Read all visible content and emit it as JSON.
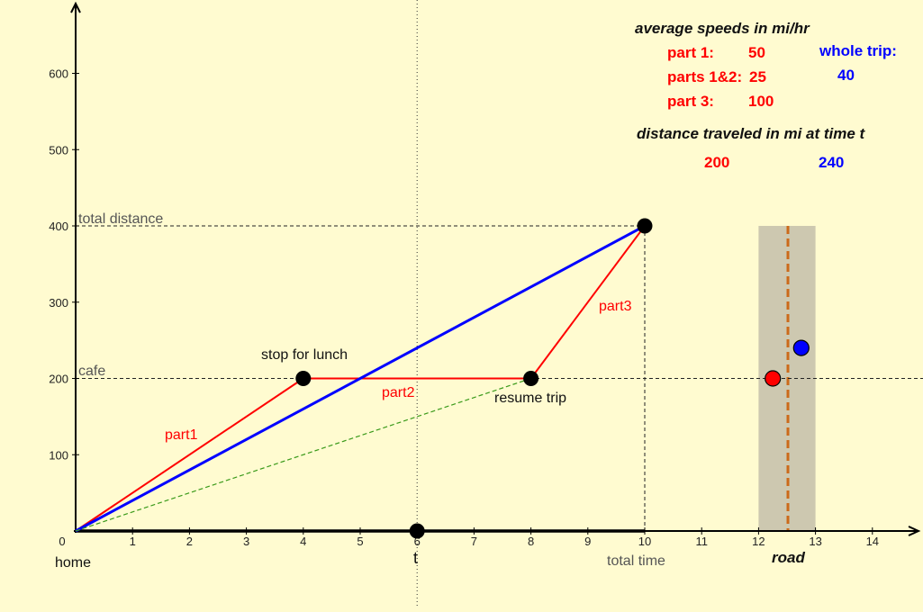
{
  "colors": {
    "background": "#fffbd0",
    "trip": "#ff0000",
    "whole_trip": "#0000ff",
    "guide": "#3a9a1a",
    "road": "#cdc8b0",
    "road_line": "#cc6a1a"
  },
  "chart_data": {
    "type": "line",
    "xlim": [
      0,
      14
    ],
    "ylim": [
      0,
      600
    ],
    "x_ticks": [
      0,
      1,
      2,
      3,
      4,
      5,
      6,
      7,
      8,
      9,
      10,
      11,
      12,
      13,
      14
    ],
    "y_ticks": [
      100,
      200,
      300,
      400,
      500,
      600
    ],
    "grid": false,
    "series": [
      {
        "name": "part1",
        "color": "#ff0000",
        "points": [
          [
            0,
            0
          ],
          [
            4,
            200
          ]
        ]
      },
      {
        "name": "part2",
        "color": "#ff0000",
        "points": [
          [
            4,
            200
          ],
          [
            8,
            200
          ]
        ]
      },
      {
        "name": "part3",
        "color": "#ff0000",
        "points": [
          [
            8,
            200
          ],
          [
            10,
            400
          ]
        ]
      },
      {
        "name": "",
        "color": "#0000ff",
        "points": [
          [
            0,
            0
          ],
          [
            10,
            400
          ]
        ]
      },
      {
        "name": "",
        "color": "#3a9a1a",
        "dashed": true,
        "points": [
          [
            0,
            0
          ],
          [
            8,
            200
          ]
        ]
      }
    ],
    "key_points": [
      {
        "x": 4,
        "y": 200,
        "label": "stop for lunch"
      },
      {
        "x": 8,
        "y": 200,
        "label": "resume trip"
      },
      {
        "x": 10,
        "y": 400,
        "label": ""
      },
      {
        "x": 6,
        "y": 0,
        "label": ""
      }
    ],
    "t": 6,
    "reference_lines": {
      "total_distance": 400,
      "cafe": 200,
      "total_time": 10
    },
    "road": {
      "x_from": 12,
      "x_to": 13,
      "y_to": 400,
      "center_x": 12.5
    },
    "road_points": [
      {
        "color": "#ff0000",
        "x": 12.25,
        "y": 200
      },
      {
        "color": "#0000ff",
        "x": 12.75,
        "y": 240
      }
    ],
    "labels": {
      "origin": "home",
      "t": "t",
      "total_time": "total time",
      "road": "road",
      "total_distance": "total distance",
      "cafe": "cafe",
      "part1": "part1",
      "part2": "part2",
      "part3": "part3"
    }
  },
  "info": {
    "speeds_header": "average speeds in mi/hr",
    "part1_label": "part 1:",
    "part1_value": "50",
    "parts12_label": "parts 1&2:",
    "parts12_value": "25",
    "part3_label": "part 3:",
    "part3_value": "100",
    "whole_trip_label": "whole trip:",
    "whole_trip_value": "40",
    "distance_header": "distance traveled in mi at time t",
    "distance_red": "200",
    "distance_blue": "240"
  }
}
